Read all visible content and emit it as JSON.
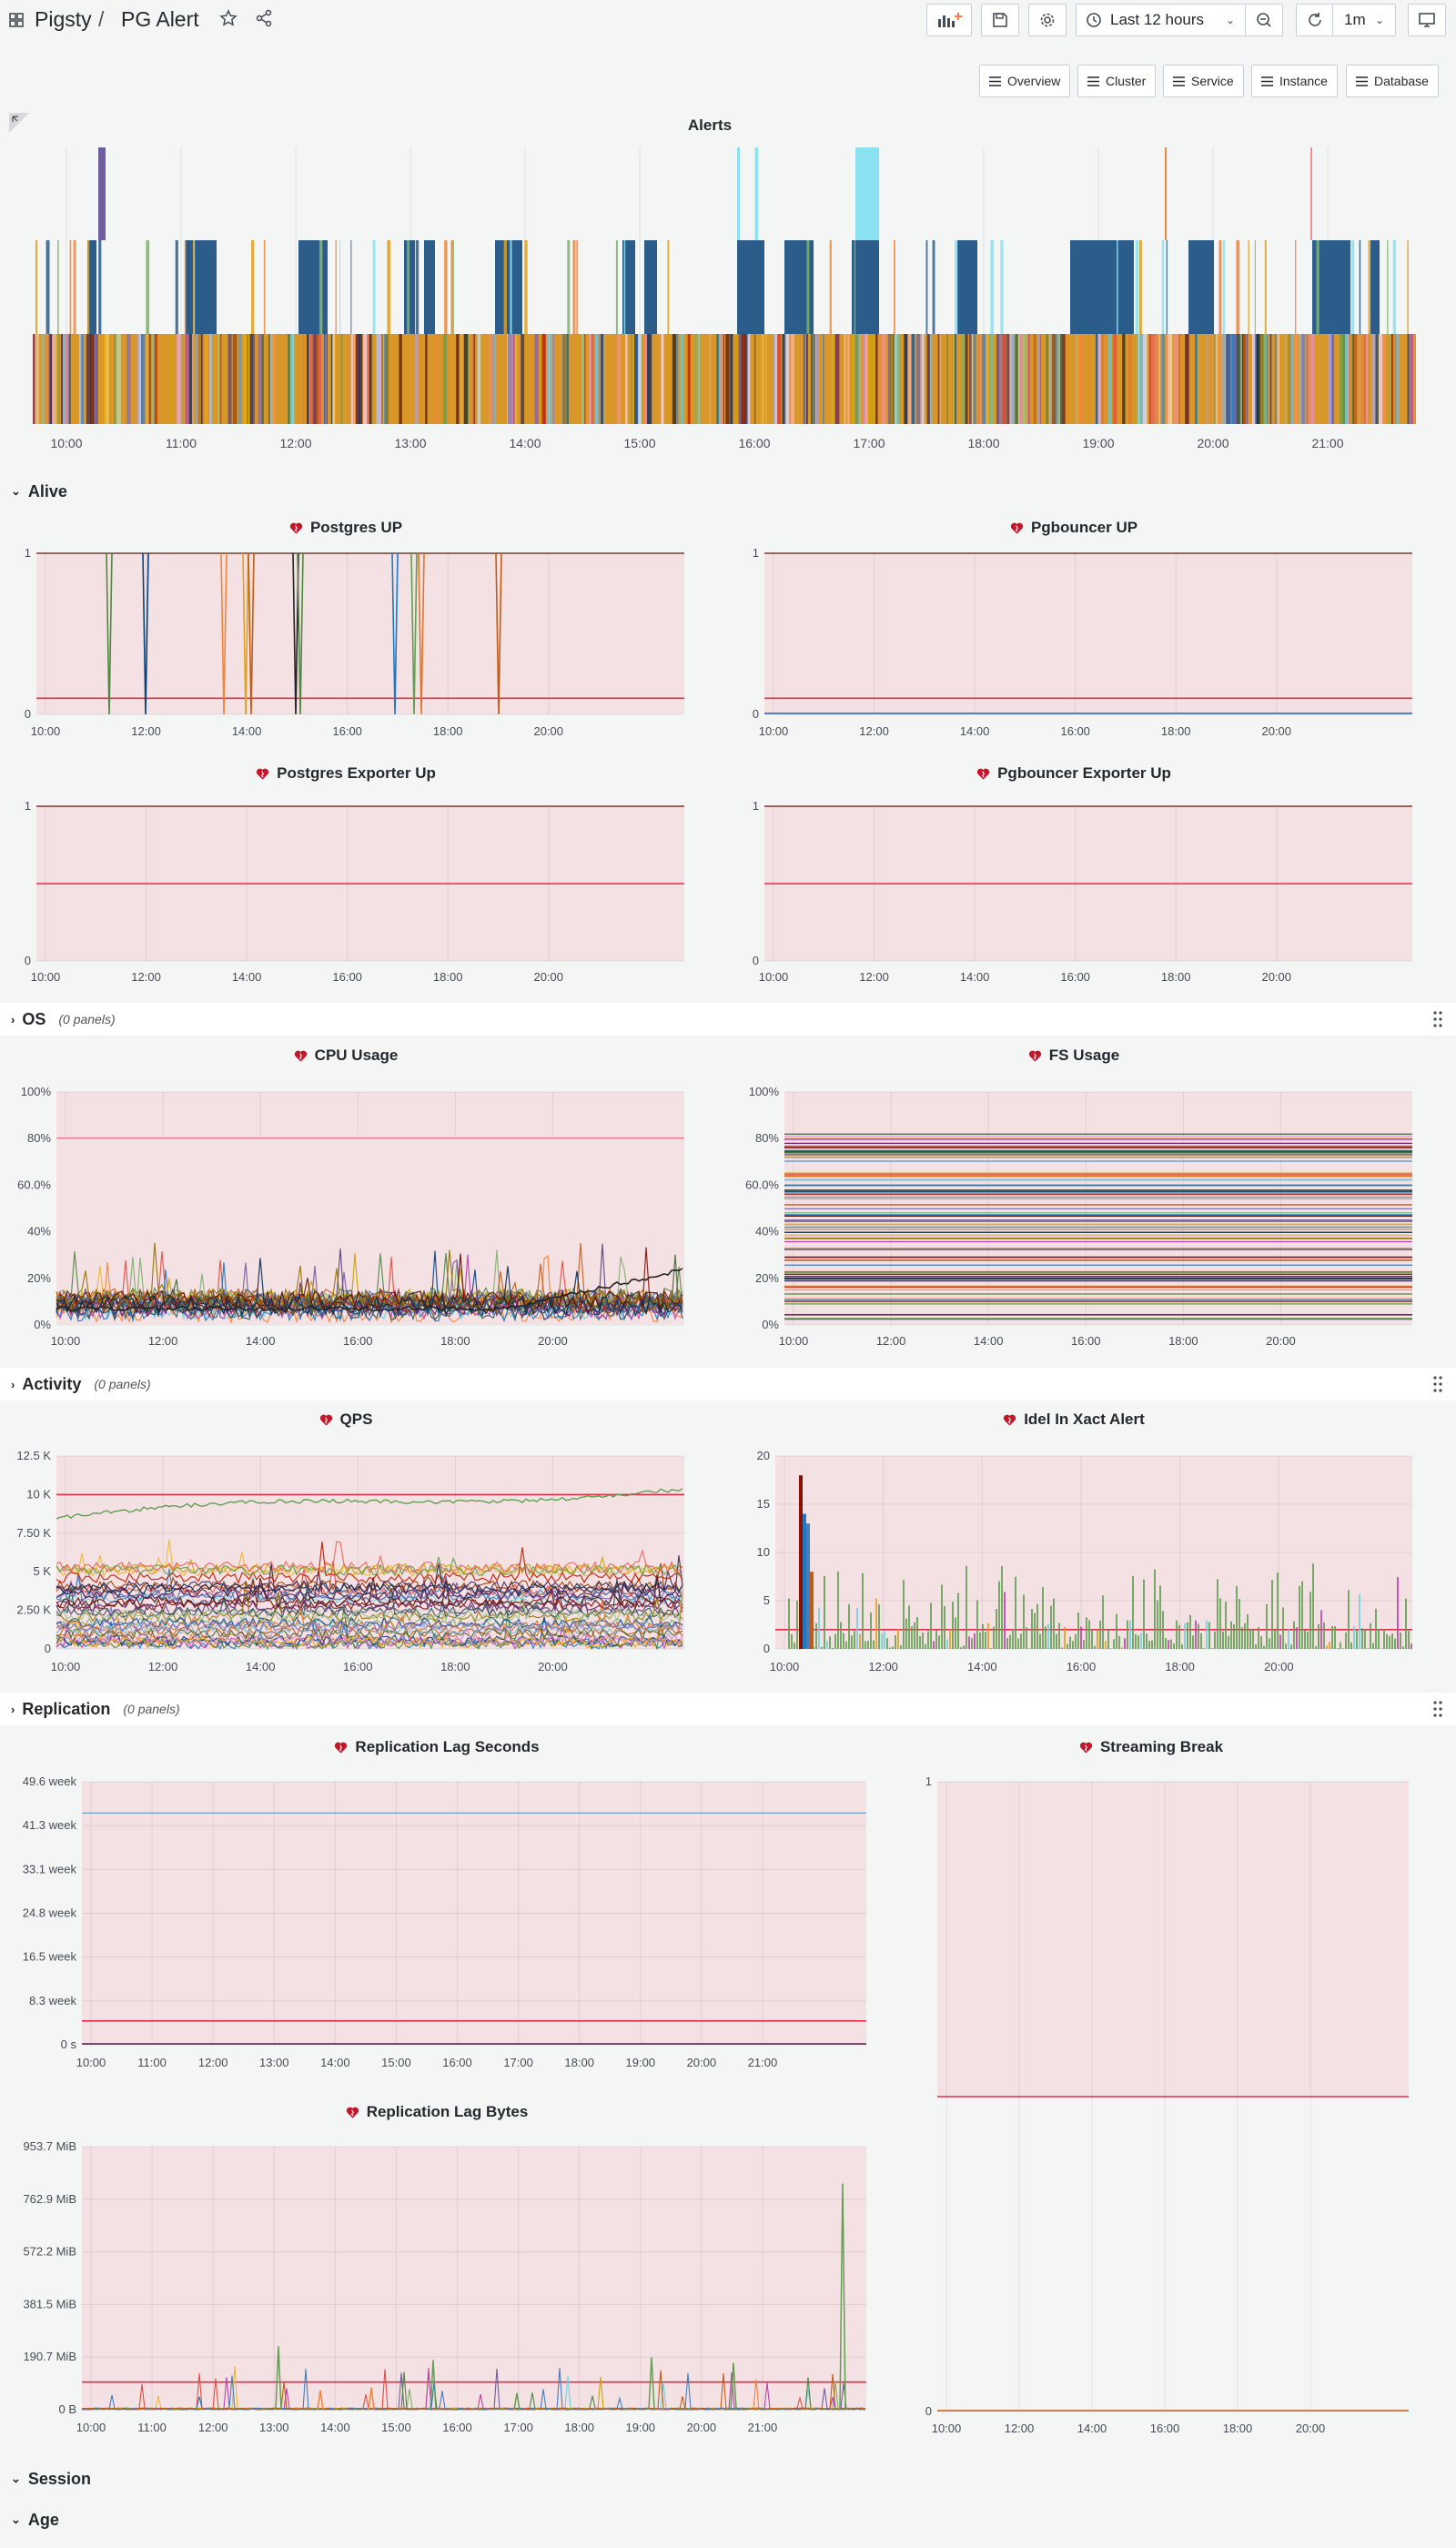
{
  "nav": {
    "breadcrumb_root": "Pigsty",
    "separator": "/",
    "dashboard_title": "PG Alert",
    "time_range": "Last 12 hours",
    "refresh_interval": "1m"
  },
  "links": [
    {
      "label": "Overview"
    },
    {
      "label": "Cluster"
    },
    {
      "label": "Service"
    },
    {
      "label": "Instance"
    },
    {
      "label": "Database"
    }
  ],
  "rows": {
    "alive": "Alive",
    "os": "OS",
    "activity": "Activity",
    "replication": "Replication",
    "session": "Session",
    "age": "Age",
    "collapsed_count": "(0 panels)"
  },
  "colors": {
    "threshold": "#e02f44",
    "threshold_fill": "#f4e1e3",
    "bar_blue": "#1f60c4",
    "bar_cyan": "#8ae1f1",
    "bar_orange": "#e0a020",
    "bar_purple": "#7a5296"
  },
  "panels": {
    "alerts": {
      "title": "Alerts"
    },
    "postgres_up": {
      "title": "Postgres UP"
    },
    "pgbouncer_up": {
      "title": "Pgbouncer UP"
    },
    "postgres_exporter_up": {
      "title": "Postgres Exporter Up"
    },
    "pgbouncer_exporter_up": {
      "title": "Pgbouncer Exporter Up"
    },
    "cpu_usage": {
      "title": "CPU Usage"
    },
    "fs_usage": {
      "title": "FS Usage"
    },
    "qps": {
      "title": "QPS"
    },
    "idle_xact": {
      "title": "Idel In Xact Alert"
    },
    "repl_lag_seconds": {
      "title": "Replication Lag Seconds"
    },
    "streaming_break": {
      "title": "Streaming Break"
    },
    "repl_lag_bytes": {
      "title": "Replication Lag Bytes"
    }
  },
  "chart_data": [
    {
      "id": "alerts",
      "type": "bar",
      "title": "Alerts",
      "x_ticks": [
        "10:00",
        "11:00",
        "12:00",
        "13:00",
        "14:00",
        "15:00",
        "16:00",
        "17:00",
        "18:00",
        "19:00",
        "20:00",
        "21:00"
      ],
      "legend": "none",
      "grid": true
    },
    {
      "id": "postgres_up",
      "type": "line",
      "title": "Postgres UP",
      "y_ticks": [
        "0",
        "1"
      ],
      "x_ticks": [
        "10:00",
        "12:00",
        "14:00",
        "16:00",
        "18:00",
        "20:00"
      ],
      "ylim": [
        0,
        1
      ],
      "threshold": 0.1,
      "grid": true
    },
    {
      "id": "pgbouncer_up",
      "type": "line",
      "title": "Pgbouncer UP",
      "y_ticks": [
        "0",
        "1"
      ],
      "x_ticks": [
        "10:00",
        "12:00",
        "14:00",
        "16:00",
        "18:00",
        "20:00"
      ],
      "ylim": [
        0,
        1
      ],
      "threshold": 0.1,
      "grid": true
    },
    {
      "id": "postgres_exporter_up",
      "type": "line",
      "title": "Postgres Exporter Up",
      "y_ticks": [
        "0",
        "1"
      ],
      "x_ticks": [
        "10:00",
        "12:00",
        "14:00",
        "16:00",
        "18:00",
        "20:00"
      ],
      "ylim": [
        0,
        1
      ],
      "threshold": 0.5,
      "grid": true
    },
    {
      "id": "pgbouncer_exporter_up",
      "type": "line",
      "title": "Pgbouncer Exporter Up",
      "y_ticks": [
        "0",
        "1"
      ],
      "x_ticks": [
        "10:00",
        "12:00",
        "14:00",
        "16:00",
        "18:00",
        "20:00"
      ],
      "ylim": [
        0,
        1
      ],
      "threshold": 0.5,
      "grid": true
    },
    {
      "id": "cpu_usage",
      "type": "line",
      "title": "CPU Usage",
      "y_ticks": [
        "0%",
        "20%",
        "40%",
        "60.0%",
        "80%",
        "100%"
      ],
      "x_ticks": [
        "10:00",
        "12:00",
        "14:00",
        "16:00",
        "18:00",
        "20:00"
      ],
      "ylim": [
        0,
        100
      ],
      "threshold": 80,
      "grid": true
    },
    {
      "id": "fs_usage",
      "type": "line",
      "title": "FS Usage",
      "y_ticks": [
        "0%",
        "20%",
        "40%",
        "60.0%",
        "80%",
        "100%"
      ],
      "x_ticks": [
        "10:00",
        "12:00",
        "14:00",
        "16:00",
        "18:00",
        "20:00"
      ],
      "ylim": [
        0,
        100
      ],
      "threshold": 80,
      "grid": true
    },
    {
      "id": "qps",
      "type": "line",
      "title": "QPS",
      "y_ticks": [
        "0",
        "2.50 K",
        "5 K",
        "7.50 K",
        "10 K",
        "12.5 K"
      ],
      "x_ticks": [
        "10:00",
        "12:00",
        "14:00",
        "16:00",
        "18:00",
        "20:00"
      ],
      "ylim": [
        0,
        12500
      ],
      "threshold": 10000,
      "grid": true
    },
    {
      "id": "idle_xact",
      "type": "bar",
      "title": "Idel In Xact Alert",
      "y_ticks": [
        "0",
        "5",
        "10",
        "15",
        "20"
      ],
      "x_ticks": [
        "10:00",
        "12:00",
        "14:00",
        "16:00",
        "18:00",
        "20:00"
      ],
      "ylim": [
        0,
        20
      ],
      "threshold": 2,
      "grid": true
    },
    {
      "id": "repl_lag_seconds",
      "type": "line",
      "title": "Replication Lag Seconds",
      "y_ticks": [
        "0 s",
        "8.3 week",
        "16.5 week",
        "24.8 week",
        "33.1 week",
        "41.3 week",
        "49.6 week"
      ],
      "x_ticks": [
        "10:00",
        "11:00",
        "12:00",
        "13:00",
        "14:00",
        "15:00",
        "16:00",
        "17:00",
        "18:00",
        "19:00",
        "20:00",
        "21:00"
      ],
      "ylim": [
        0,
        49.6
      ],
      "series": [
        {
          "values": [
            43.7,
            43.7
          ]
        }
      ],
      "threshold": 4.5,
      "grid": true
    },
    {
      "id": "streaming_break",
      "type": "line",
      "title": "Streaming Break",
      "y_ticks": [
        "0",
        "1"
      ],
      "x_ticks": [
        "10:00",
        "12:00",
        "14:00",
        "16:00",
        "18:00",
        "20:00"
      ],
      "ylim": [
        0,
        1
      ],
      "threshold": 0.5,
      "grid": true
    },
    {
      "id": "repl_lag_bytes",
      "type": "line",
      "title": "Replication Lag Bytes",
      "y_ticks": [
        "0 B",
        "190.7 MiB",
        "381.5 MiB",
        "572.2 MiB",
        "762.9 MiB",
        "953.7 MiB"
      ],
      "x_ticks": [
        "10:00",
        "11:00",
        "12:00",
        "13:00",
        "14:00",
        "15:00",
        "16:00",
        "17:00",
        "18:00",
        "19:00",
        "20:00",
        "21:00"
      ],
      "ylim": [
        0,
        953.7
      ],
      "threshold": 100,
      "grid": true
    }
  ]
}
